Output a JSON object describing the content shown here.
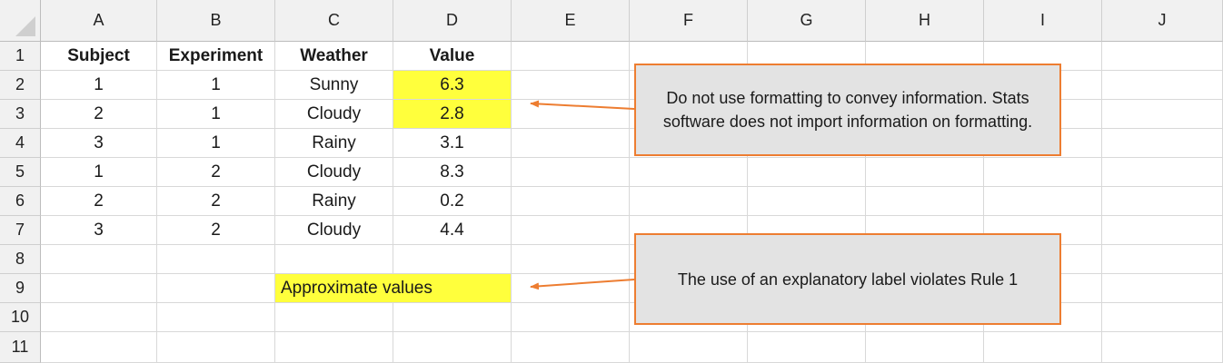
{
  "columns": [
    "A",
    "B",
    "C",
    "D",
    "E",
    "F",
    "G",
    "H",
    "I",
    "J"
  ],
  "rows": [
    "1",
    "2",
    "3",
    "4",
    "5",
    "6",
    "7",
    "8",
    "9",
    "10",
    "11"
  ],
  "header": {
    "subject": "Subject",
    "experiment": "Experiment",
    "weather": "Weather",
    "value": "Value"
  },
  "data_rows": [
    {
      "subject": "1",
      "experiment": "1",
      "weather": "Sunny",
      "value": "6.3",
      "highlight": true
    },
    {
      "subject": "2",
      "experiment": "1",
      "weather": "Cloudy",
      "value": "2.8",
      "highlight": true
    },
    {
      "subject": "3",
      "experiment": "1",
      "weather": "Rainy",
      "value": "3.1",
      "highlight": false
    },
    {
      "subject": "1",
      "experiment": "2",
      "weather": "Cloudy",
      "value": "8.3",
      "highlight": false
    },
    {
      "subject": "2",
      "experiment": "2",
      "weather": "Rainy",
      "value": "0.2",
      "highlight": false
    },
    {
      "subject": "3",
      "experiment": "2",
      "weather": "Cloudy",
      "value": "4.4",
      "highlight": false
    }
  ],
  "label_cell": "Approximate values",
  "callouts": {
    "formatting_note": "Do not use formatting to convey information. Stats software does not import information on formatting.",
    "label_note": "The use of an explanatory label violates Rule 1"
  },
  "colors": {
    "highlight": "#ffff3c",
    "callout_border": "#ed7d31",
    "callout_fill": "#e3e3e3",
    "arrow": "#ed7d31"
  },
  "icons": {
    "corner": "select-all-triangle-icon"
  }
}
